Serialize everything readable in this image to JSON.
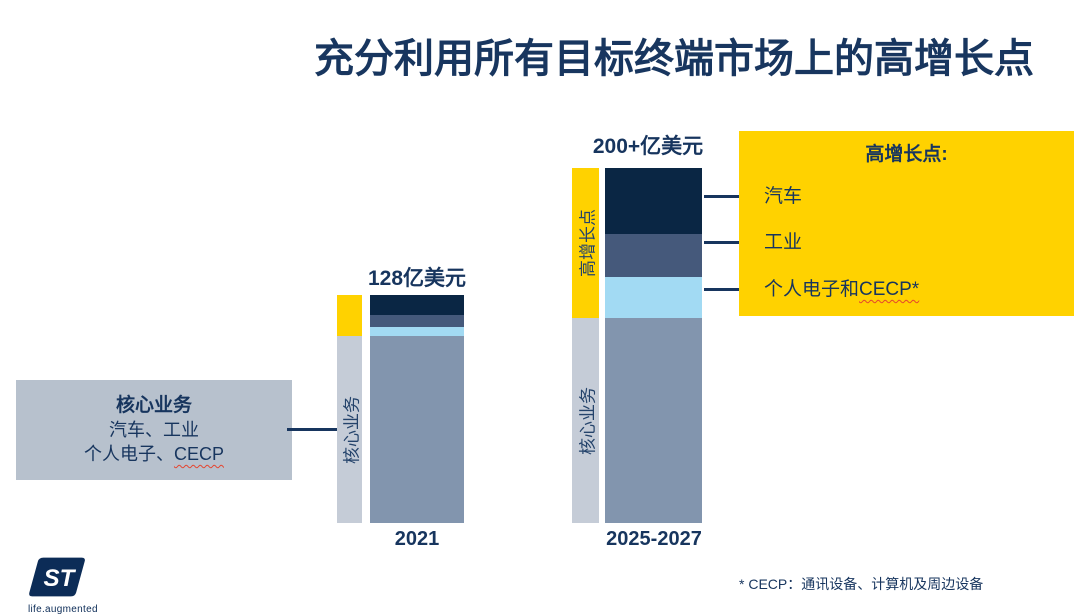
{
  "slide": {
    "title": "充分利用所有目标终端市场上的高增长点",
    "footnote": "* CECP：通讯设备、计算机及周边设备",
    "logo_text": "ST",
    "logo_tagline": "life.augmented"
  },
  "colors": {
    "brand_yellow": "#ffd200",
    "navy": "#0a2644",
    "slate_blue": "#45597b",
    "light_blue": "#a2daf3",
    "gray_blue": "#8295ae",
    "strip_gray": "#c5ccd7",
    "callout_gray": "#b7c1cd",
    "text_navy": "#17355e"
  },
  "core_box": {
    "title": "核心业务",
    "line1": "汽车、工业",
    "line2_prefix": "个人电子、",
    "line2_cecp": "CECP"
  },
  "growth_box": {
    "title": "高增长点:",
    "items": [
      {
        "label": "汽车",
        "cecp": ""
      },
      {
        "label": "工业",
        "cecp": ""
      },
      {
        "label": "个人电子和",
        "cecp": "CECP*"
      }
    ]
  },
  "chart_data": {
    "type": "bar",
    "stacked": true,
    "title": "充分利用所有目标终端市场上的高增长点",
    "unit": "亿美元",
    "categories": [
      "2021",
      "2025-2027"
    ],
    "totals_labels": [
      "128亿美元",
      "200+亿美元"
    ],
    "totals_values": [
      128,
      200
    ],
    "series": [
      {
        "key": "core",
        "name": "核心业务",
        "group": "core",
        "color": "#8295ae",
        "values": [
          105,
          115
        ]
      },
      {
        "key": "pe-cecp",
        "name": "个人电子和CECP",
        "group": "growth",
        "color": "#a2daf3",
        "values": [
          5,
          23
        ]
      },
      {
        "key": "industrial",
        "name": "工业",
        "group": "growth",
        "color": "#45597b",
        "values": [
          7,
          24
        ]
      },
      {
        "key": "automotive",
        "name": "汽车",
        "group": "growth",
        "color": "#0a2644",
        "values": [
          11,
          37
        ]
      }
    ],
    "growth_strip_label": "高增长点",
    "core_strip_label": "核心业务",
    "grid": false,
    "legend_position": "right-callout"
  }
}
